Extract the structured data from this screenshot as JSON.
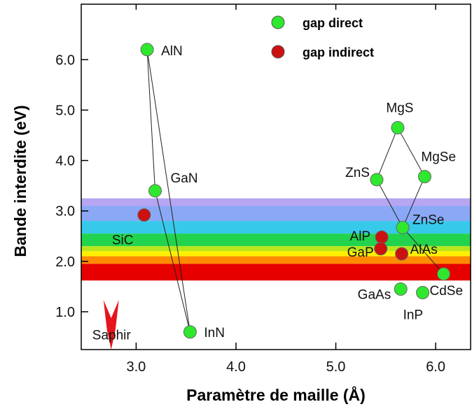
{
  "chart_data": {
    "type": "scatter",
    "xlabel": "Paramètre de maille (Å)",
    "ylabel": "Bande interdite (eV)",
    "xlim": [
      2.45,
      6.35
    ],
    "ylim": [
      0.25,
      7.1
    ],
    "x_ticks": [
      {
        "value": 3.0,
        "label": "3.0"
      },
      {
        "value": 4.0,
        "label": "4.0"
      },
      {
        "value": 5.0,
        "label": "5.0"
      },
      {
        "value": 6.0,
        "label": "6.0"
      }
    ],
    "y_ticks": [
      {
        "value": 1.0,
        "label": "1.0"
      },
      {
        "value": 2.0,
        "label": "2.0"
      },
      {
        "value": 3.0,
        "label": "3.0"
      },
      {
        "value": 4.0,
        "label": "4.0"
      },
      {
        "value": 5.0,
        "label": "5.0"
      },
      {
        "value": 6.0,
        "label": "6.0"
      }
    ],
    "grid": false,
    "legend": {
      "placement": "top-right",
      "entries": [
        {
          "label": "gap direct",
          "color": "#2ee82e"
        },
        {
          "label": "gap indirect",
          "color": "#cc1111"
        }
      ]
    },
    "visible_spectrum_bands": [
      {
        "ymin": 3.1,
        "ymax": 3.25,
        "color": "#b6a6f2"
      },
      {
        "ymin": 2.8,
        "ymax": 3.1,
        "color": "#8aa8f5"
      },
      {
        "ymin": 2.55,
        "ymax": 2.8,
        "color": "#37c9ea"
      },
      {
        "ymin": 2.3,
        "ymax": 2.55,
        "color": "#22d34d"
      },
      {
        "ymin": 2.2,
        "ymax": 2.3,
        "color": "#b8e61a"
      },
      {
        "ymin": 2.1,
        "ymax": 2.2,
        "color": "#fff000"
      },
      {
        "ymin": 1.95,
        "ymax": 2.1,
        "color": "#ff8a00"
      },
      {
        "ymin": 1.62,
        "ymax": 1.95,
        "color": "#e60000"
      }
    ],
    "direct_gap_points": [
      {
        "name": "AlN",
        "x": 3.11,
        "y": 6.2
      },
      {
        "name": "GaN",
        "x": 3.19,
        "y": 3.4
      },
      {
        "name": "InN",
        "x": 3.54,
        "y": 0.6
      },
      {
        "name": "MgS",
        "x": 5.62,
        "y": 4.65
      },
      {
        "name": "ZnS",
        "x": 5.41,
        "y": 3.62
      },
      {
        "name": "MgSe",
        "x": 5.89,
        "y": 3.68
      },
      {
        "name": "ZnSe",
        "x": 5.67,
        "y": 2.67
      },
      {
        "name": "CdSe",
        "x": 6.08,
        "y": 1.75
      },
      {
        "name": "GaAs",
        "x": 5.65,
        "y": 1.45
      },
      {
        "name": "InP",
        "x": 5.87,
        "y": 1.38
      }
    ],
    "indirect_gap_points": [
      {
        "name": "SiC",
        "x": 3.08,
        "y": 2.92
      },
      {
        "name": "AlP",
        "x": 5.46,
        "y": 2.48
      },
      {
        "name": "GaP",
        "x": 5.45,
        "y": 2.25
      },
      {
        "name": "AlAs",
        "x": 5.66,
        "y": 2.15
      }
    ],
    "annotations": [
      {
        "text": "Saphir",
        "x": 2.75,
        "y": 0.55
      }
    ],
    "connecting_lines": [
      [
        "AlN",
        "GaN"
      ],
      [
        "GaN",
        "InN"
      ],
      [
        "AlN",
        "InN"
      ],
      [
        "MgS",
        "ZnS"
      ],
      [
        "MgS",
        "MgSe"
      ],
      [
        "ZnS",
        "ZnSe"
      ],
      [
        "MgSe",
        "ZnSe"
      ],
      [
        "ZnSe",
        "CdSe"
      ]
    ]
  }
}
